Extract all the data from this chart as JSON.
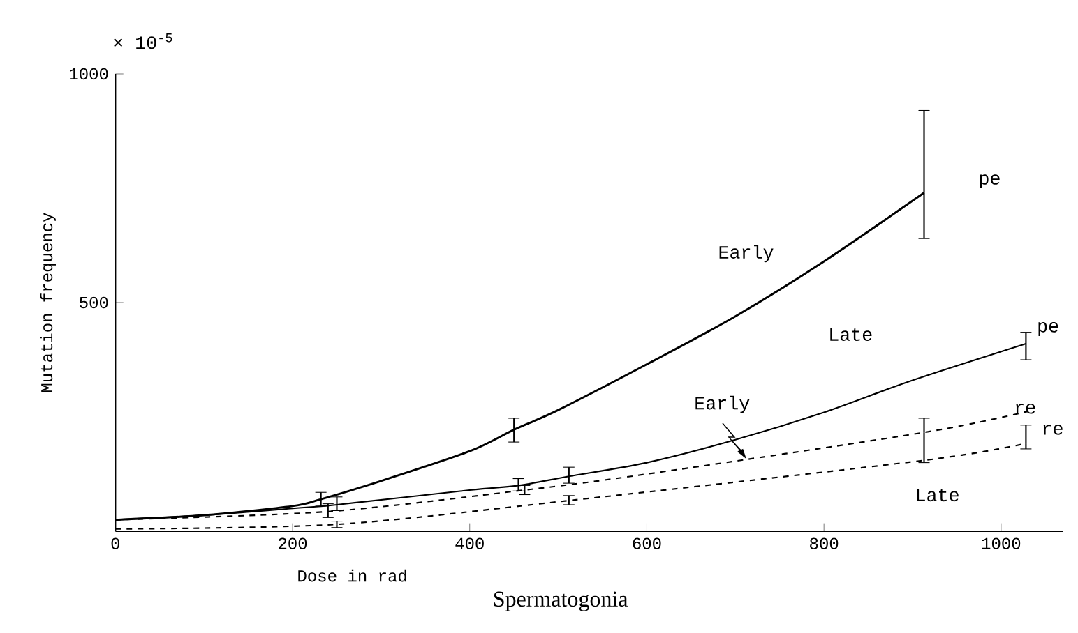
{
  "chart_data": {
    "type": "line",
    "title": "Spermatogonia",
    "xlabel": "Dose in rad",
    "ylabel": "Mutation frequency",
    "xlim": [
      0,
      1070
    ],
    "ylim": [
      0,
      1000
    ],
    "xticks": [
      0,
      200,
      400,
      600,
      800,
      1000
    ],
    "yticks": [
      500,
      1000
    ],
    "grid": false,
    "marker": "none",
    "series": [
      {
        "color": "#000000",
        "line_style": "solid",
        "x": [
          0,
          100,
          200,
          232,
          300,
          400,
          450,
          500,
          600,
          700,
          800,
          913
        ],
        "values": [
          25,
          35,
          55,
          70,
          110,
          175,
          222,
          265,
          365,
          470,
          590,
          740
        ],
        "errors": [
          null,
          null,
          null,
          [
            55,
            85
          ],
          null,
          null,
          [
            195,
            247
          ],
          null,
          null,
          null,
          null,
          [
            640,
            920
          ]
        ]
      },
      {
        "color": "#000000",
        "line_style": "solid",
        "x": [
          0,
          100,
          200,
          250,
          400,
          455,
          512,
          600,
          700,
          800,
          900,
          1028
        ],
        "values": [
          25,
          35,
          50,
          58,
          90,
          100,
          120,
          150,
          200,
          260,
          330,
          410
        ],
        "errors": [
          null,
          null,
          null,
          [
            45,
            75
          ],
          null,
          [
            88,
            115
          ],
          [
            105,
            140
          ],
          null,
          null,
          null,
          null,
          [
            375,
            435
          ]
        ]
      },
      {
        "color": "#000000",
        "line_style": "dashed",
        "x": [
          0,
          240,
          462,
          600,
          913,
          1030
        ],
        "values": [
          25,
          43,
          90,
          125,
          216,
          262
        ],
        "errors": [
          null,
          [
            30,
            60
          ],
          [
            80,
            100
          ],
          null,
          [
            150,
            247
          ],
          null
        ]
      },
      {
        "color": "#000000",
        "line_style": "dashed",
        "x": [
          0,
          250,
          512,
          913,
          1028
        ],
        "values": [
          5,
          15,
          67,
          155,
          192
        ],
        "errors": [
          null,
          [
            8,
            22
          ],
          [
            58,
            78
          ],
          null,
          [
            180,
            232
          ]
        ]
      }
    ],
    "annotations": [
      "× 10$^{-5}$",
      "Early",
      "pe",
      "Late",
      "pe",
      "Early",
      "re",
      "re",
      "Late"
    ]
  }
}
